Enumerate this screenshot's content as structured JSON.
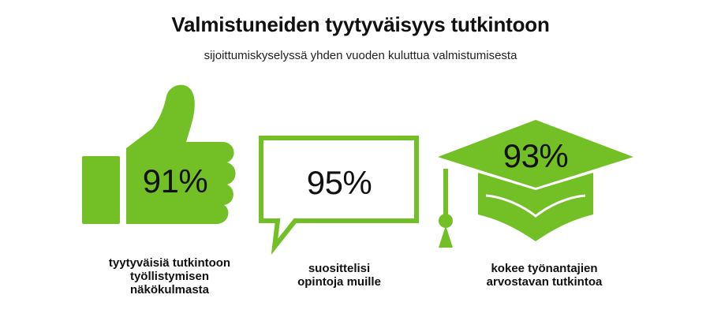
{
  "title": "Valmistuneiden tyytyväisyys tutkintoon",
  "subtitle": "sijoittumiskyselyssä yhden vuoden kuluttua valmistumisesta",
  "accent_color": "#72bf26",
  "items": [
    {
      "icon": "thumbs-up-icon",
      "value": "91%",
      "caption_lines": [
        "tyytyväisiä tutkintoon",
        "työllistymisen",
        "näkökulmasta"
      ]
    },
    {
      "icon": "speech-bubble-icon",
      "value": "95%",
      "caption_lines": [
        "suosittelisi",
        "opintoja muille"
      ]
    },
    {
      "icon": "graduation-cap-icon",
      "value": "93%",
      "caption_lines": [
        "kokee työnantajien",
        "arvostavan tutkintoa"
      ]
    }
  ]
}
